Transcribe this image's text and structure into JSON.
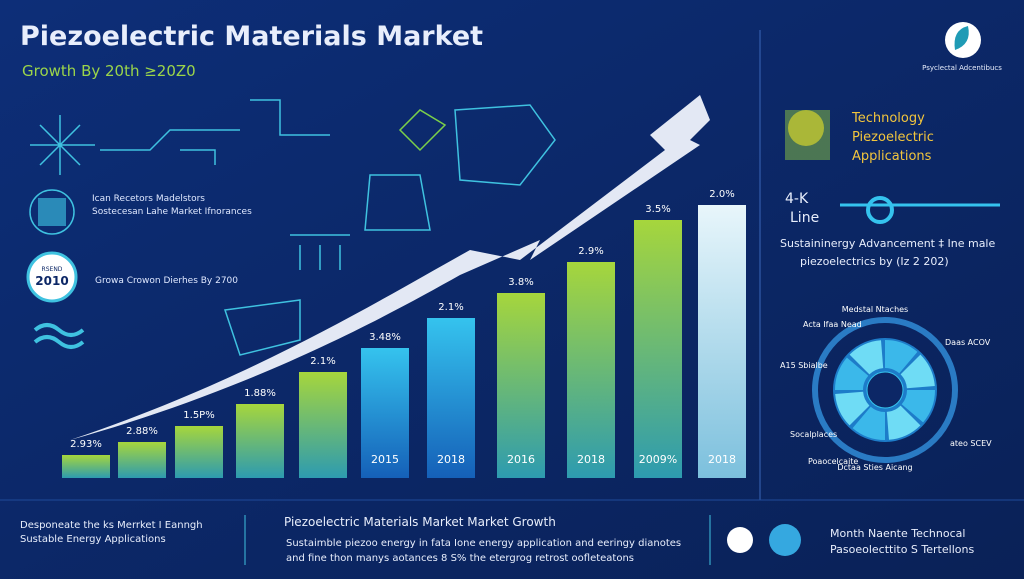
{
  "header": {
    "title": "Piezoelectric Materials  Market",
    "subtitle": "Growth  By  20th  ≥20Z0",
    "logo_text": "Psyclectal Adcentibucs"
  },
  "left": {
    "note_line1": "Ican Recetors Madelstors",
    "note_line2": "Sostecesan Lahe Market Ifnorances",
    "badge_small": "RSEND",
    "badge_year": "2010",
    "growth_note": "Growa Crowon Dierhes  By  2700"
  },
  "bars": {
    "labels": [
      "2.93%",
      "2.88%",
      "1.5P%",
      "1.88%",
      "2.1%",
      "3.48%",
      "2.1%",
      "3.8%",
      "2.9%",
      "3.5%",
      "2.0%"
    ],
    "years": [
      null,
      null,
      null,
      null,
      null,
      "2015",
      "2018",
      "2016",
      "2018",
      "2009%",
      "2018"
    ]
  },
  "right": {
    "tech1": "Technology",
    "tech2": "Piezoelectric",
    "tech3": "Applications",
    "k": "4-K",
    "line": "Line",
    "adv1": "Sustaininergy Advancement ‡ Ine male",
    "adv2": "piezoelectrics by (Iz 2 202)",
    "wheel": [
      "Medstal Ntaches",
      "Acta Ifaa Nead",
      "Daas ACOV",
      "A15 Sbialbe",
      "Socalplaces",
      "ateo SCEV",
      "Poaocelcaite",
      "Dctaa Sties Aicang"
    ]
  },
  "footer": {
    "left1": "Desponeate the ks Merrket I Eanngh",
    "left2": "Sustable Energy Applications",
    "heading": "Piezoelectric Materials Market Market  Growth",
    "body1": "Sustaimble piezoo energy in fata Ione energy application and eeringy dianotes",
    "body2": "and fine thon manys aotances 8 S% the etergrog retrost oofleteatons",
    "right1": "Month  Naente Technocal",
    "right2": "Pasoeolecttito S Tertellons"
  }
}
